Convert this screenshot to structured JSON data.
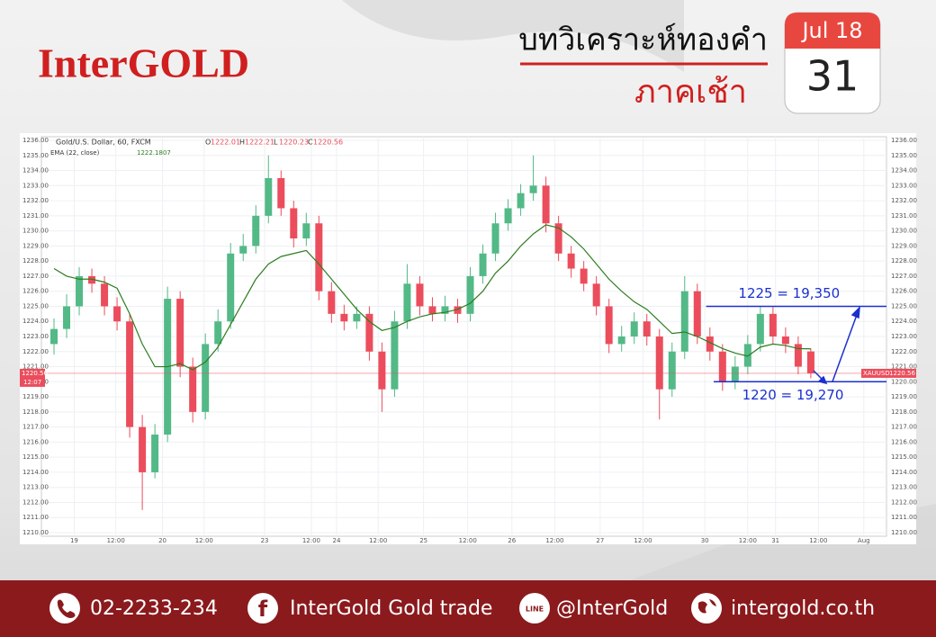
{
  "header": {
    "logo": "InterGOLD",
    "title": "บทวิเคราะห์ทองคำ",
    "subtitle": "ภาคเช้า",
    "calendar_month": "Jul 18",
    "calendar_day": "31"
  },
  "footer": {
    "phone": "02-2233-234",
    "facebook": "InterGold Gold trade",
    "line": "@InterGold",
    "website": "intergold.co.th",
    "line_icon": "LINE"
  },
  "chart_data": {
    "type": "candlestick",
    "title": "Gold/U.S. Dollar, 60, FXCM",
    "ohlc_labels": [
      "O",
      "H",
      "L",
      "C"
    ],
    "up_color": "#53b987",
    "down_color": "#eb4d5c",
    "open": [
      1222.5,
      1223.5,
      1225,
      1227,
      1226.5,
      1225,
      1224,
      1217,
      1214,
      1216.5,
      1225.5,
      1221,
      1218,
      1222.5,
      1224,
      1228.5,
      1229,
      1231,
      1233.5,
      1231.5,
      1229.5,
      1230.5,
      1226,
      1224.5,
      1224,
      1224.5,
      1222,
      1219.5,
      1224,
      1226.5,
      1225,
      1224.5,
      1225,
      1224.5,
      1227,
      1228.5,
      1230.5,
      1231.5,
      1232.5,
      1233,
      1230.5,
      1228.5,
      1227.5,
      1226.5,
      1225,
      1222.5,
      1223,
      1224,
      1223,
      1219.5,
      1222,
      1226,
      1223,
      1222,
      1220,
      1221,
      1222.5,
      1224.5,
      1223,
      1222.5,
      1222.01
    ],
    "high": [
      1224.2,
      1225.8,
      1227.6,
      1227.5,
      1227,
      1225.6,
      1224.5,
      1217.8,
      1217.2,
      1226.3,
      1226,
      1221.6,
      1223.2,
      1224.8,
      1229.2,
      1229.8,
      1231.7,
      1235,
      1234,
      1232,
      1231.2,
      1231,
      1226.6,
      1225.1,
      1225,
      1225,
      1222.6,
      1224.7,
      1227.8,
      1227,
      1225.6,
      1225.7,
      1225.5,
      1227.6,
      1229.1,
      1231.2,
      1232.1,
      1233.1,
      1235,
      1233.6,
      1231,
      1229,
      1228,
      1227,
      1225.5,
      1223.7,
      1224.6,
      1224.5,
      1223.5,
      1222.6,
      1227,
      1226.5,
      1223.6,
      1222.5,
      1221.7,
      1223.1,
      1225,
      1225,
      1223.6,
      1223,
      1222.21
    ],
    "low": [
      1221.8,
      1222.9,
      1224.4,
      1225.9,
      1224.4,
      1223.4,
      1216.3,
      1211.5,
      1213.6,
      1216,
      1220.3,
      1217.3,
      1217.5,
      1222,
      1223.5,
      1228,
      1228.5,
      1230.5,
      1231,
      1228.9,
      1229,
      1225.4,
      1223.9,
      1223.4,
      1223.5,
      1221.4,
      1218,
      1219,
      1223.5,
      1224.4,
      1224,
      1224,
      1223.9,
      1224,
      1226.5,
      1228,
      1230,
      1231,
      1232,
      1229.9,
      1228,
      1226.9,
      1226,
      1224.4,
      1221.9,
      1222,
      1222.5,
      1222.4,
      1217.5,
      1219,
      1221.5,
      1222.5,
      1221.4,
      1219.4,
      1219.5,
      1220.5,
      1222,
      1222.5,
      1221.9,
      1220.5,
      1220.23
    ],
    "close": [
      1223.5,
      1225,
      1227,
      1226.5,
      1225,
      1224,
      1217,
      1214,
      1216.5,
      1225.5,
      1221,
      1218,
      1222.5,
      1224,
      1228.5,
      1229,
      1231,
      1233.5,
      1231.5,
      1229.5,
      1230.5,
      1226,
      1224.5,
      1224,
      1224.5,
      1222,
      1219.5,
      1224,
      1226.5,
      1225,
      1224.5,
      1225,
      1224.5,
      1227,
      1228.5,
      1230.5,
      1231.5,
      1232.5,
      1233,
      1230.5,
      1228.5,
      1227.5,
      1226.5,
      1225,
      1222.5,
      1223,
      1224,
      1223,
      1219.5,
      1222,
      1226,
      1223,
      1222,
      1220,
      1221,
      1222.5,
      1224.5,
      1223,
      1222.5,
      1221,
      1220.56
    ],
    "ema": {
      "name": "EMA (22, close)",
      "color": "#2e7d1f",
      "values": [
        1227.5,
        1227.0,
        1226.8,
        1226.8,
        1226.6,
        1226.2,
        1224.5,
        1222.5,
        1221.0,
        1221.0,
        1221.2,
        1220.8,
        1221.3,
        1222.3,
        1223.8,
        1225.3,
        1226.8,
        1227.8,
        1228.3,
        1228.5,
        1228.7,
        1227.8,
        1226.8,
        1225.8,
        1224.8,
        1224.0,
        1223.4,
        1223.6,
        1224.0,
        1224.3,
        1224.5,
        1224.6,
        1224.8,
        1225.2,
        1226.0,
        1227.2,
        1228.0,
        1229.0,
        1229.8,
        1230.4,
        1230.2,
        1229.6,
        1228.8,
        1227.8,
        1226.8,
        1226.0,
        1225.3,
        1224.8,
        1224.0,
        1223.2,
        1223.3,
        1223.0,
        1222.6,
        1222.2,
        1221.9,
        1221.7,
        1222.3,
        1222.5,
        1222.4,
        1222.2,
        1222.1807
      ]
    },
    "last_time": "12:07",
    "symbol": "XAUUSD",
    "levels": [
      {
        "price": 1225,
        "label": "1225 = 19,350",
        "start": 51.7
      },
      {
        "price": 1220,
        "label": "1220 = 19,270",
        "start": 52.3
      }
    ],
    "xlim": [
      -1,
      66
    ],
    "xticks": [
      {
        "value": 1.6,
        "label": "19"
      },
      {
        "value": 4.9,
        "label": "12:00"
      },
      {
        "value": 8.6,
        "label": "20"
      },
      {
        "value": 11.9,
        "label": "12:00"
      },
      {
        "value": 16.7,
        "label": "23"
      },
      {
        "value": 20.4,
        "label": "12:00"
      },
      {
        "value": 22.4,
        "label": "24"
      },
      {
        "value": 25.7,
        "label": "12:00"
      },
      {
        "value": 29.3,
        "label": "25"
      },
      {
        "value": 32.8,
        "label": "12:00"
      },
      {
        "value": 36.3,
        "label": "26"
      },
      {
        "value": 39.7,
        "label": "12:00"
      },
      {
        "value": 43.3,
        "label": "27"
      },
      {
        "value": 46.7,
        "label": "12:00"
      },
      {
        "value": 51.6,
        "label": "30"
      },
      {
        "value": 55.0,
        "label": "12:00"
      },
      {
        "value": 57.2,
        "label": "31"
      },
      {
        "value": 60.6,
        "label": "12:00"
      },
      {
        "value": 64.2,
        "label": "Aug"
      }
    ],
    "ylim": [
      1210,
      1236
    ],
    "yticks": [
      {
        "value": 1210,
        "label": "1210.00"
      },
      {
        "value": 1211,
        "label": "1211.00"
      },
      {
        "value": 1212,
        "label": "1212.00"
      },
      {
        "value": 1213,
        "label": "1213.00"
      },
      {
        "value": 1214,
        "label": "1214.00"
      },
      {
        "value": 1215,
        "label": "1215.00"
      },
      {
        "value": 1216,
        "label": "1216.00"
      },
      {
        "value": 1217,
        "label": "1217.00"
      },
      {
        "value": 1218,
        "label": "1218.00"
      },
      {
        "value": 1219,
        "label": "1219.00"
      },
      {
        "value": 1220,
        "label": "1220.00"
      },
      {
        "value": 1221,
        "label": "1221.00"
      },
      {
        "value": 1222,
        "label": "1222.00"
      },
      {
        "value": 1223,
        "label": "1223.00"
      },
      {
        "value": 1224,
        "label": "1224.00"
      },
      {
        "value": 1225,
        "label": "1225.00"
      },
      {
        "value": 1226,
        "label": "1226.00"
      },
      {
        "value": 1227,
        "label": "1227.00"
      },
      {
        "value": 1228,
        "label": "1228.00"
      },
      {
        "value": 1229,
        "label": "1229.00"
      },
      {
        "value": 1230,
        "label": "1230.00"
      },
      {
        "value": 1231,
        "label": "1231.00"
      },
      {
        "value": 1232,
        "label": "1232.00"
      },
      {
        "value": 1233,
        "label": "1233.00"
      },
      {
        "value": 1234,
        "label": "1234.00"
      },
      {
        "value": 1235,
        "label": "1235.00"
      },
      {
        "value": 1236,
        "label": "1236.00"
      }
    ],
    "grid": true
  }
}
